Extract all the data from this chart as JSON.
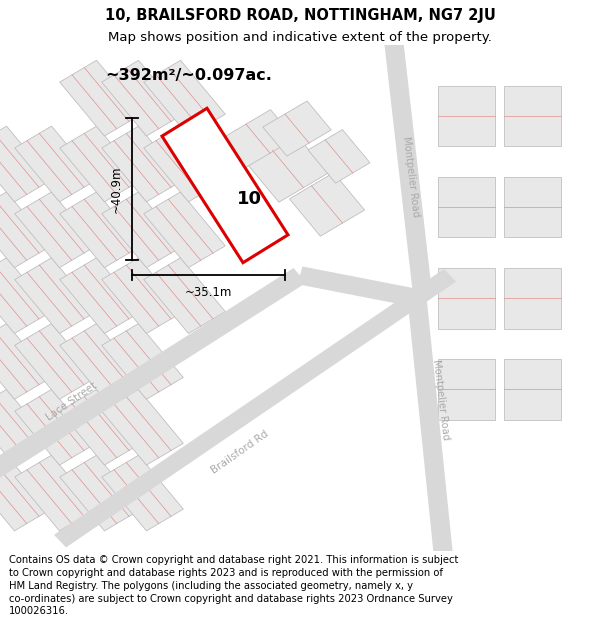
{
  "title_line1": "10, BRAILSFORD ROAD, NOTTINGHAM, NG7 2JU",
  "title_line2": "Map shows position and indicative extent of the property.",
  "area_text": "~392m²/~0.097ac.",
  "dim_width": "~35.1m",
  "dim_height": "~40.9m",
  "property_number": "10",
  "footer_text": "Contains OS data © Crown copyright and database right 2021. This information is subject to Crown copyright and database rights 2023 and is reproduced with the permission of HM Land Registry. The polygons (including the associated geometry, namely x, y co-ordinates) are subject to Crown copyright and database rights 2023 Ordnance Survey 100026316.",
  "highlight_color": "#dd0000",
  "title_fontsize": 10.5,
  "subtitle_fontsize": 9.5,
  "footer_fontsize": 7.2,
  "block_fill": "#e8e8e8",
  "block_edge": "#bbbbbb",
  "sub_line_color": "#e09090",
  "road_fill": "#d8d8d8",
  "road_label_color": "#aaaaaa",
  "white": "#ffffff"
}
